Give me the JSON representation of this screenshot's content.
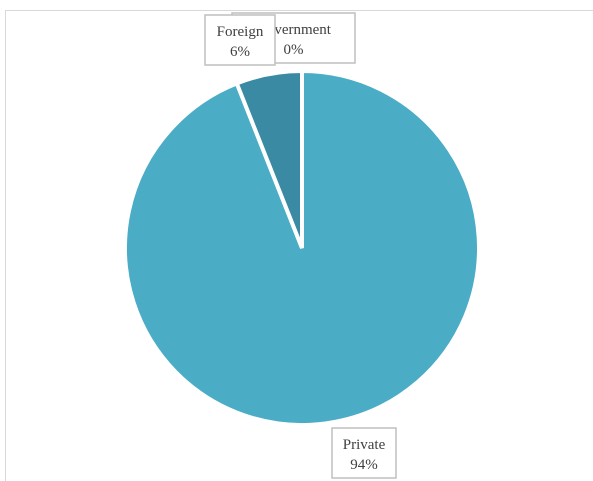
{
  "chart_data": {
    "type": "pie",
    "title": "",
    "slices": [
      {
        "label": "Private",
        "value": 94,
        "percent_label": "94%",
        "color": "#4bacc6"
      },
      {
        "label": "Foreign",
        "value": 6,
        "percent_label": "6%",
        "color": "#3a8aa3"
      },
      {
        "label": "Government",
        "value": 0,
        "percent_label": "0%",
        "color": "#2f6f84"
      }
    ],
    "legend": "none",
    "data_labels": "callout boxes with category name and percentage"
  }
}
